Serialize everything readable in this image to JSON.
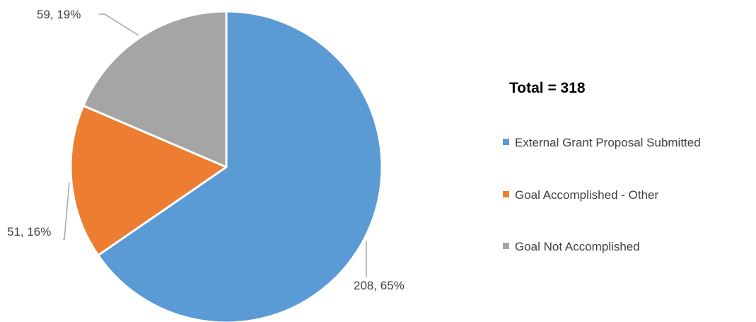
{
  "chart_data": {
    "type": "pie",
    "title": "",
    "total_label": "Total = 318",
    "slices": [
      {
        "name": "External Grant Proposal Submitted",
        "value": 208,
        "percent": "65%",
        "label": "208, 65%",
        "color": "#5B9BD5"
      },
      {
        "name": "Goal Accomplished - Other",
        "value": 51,
        "percent": "16%",
        "label": "51, 16%",
        "color": "#ED7D31"
      },
      {
        "name": "Goal Not Accomplished",
        "value": 59,
        "percent": "19%",
        "label": "59, 19%",
        "color": "#A5A5A5"
      }
    ],
    "legend_position": "right",
    "start_angle": "12 o'clock",
    "direction": "clockwise"
  }
}
